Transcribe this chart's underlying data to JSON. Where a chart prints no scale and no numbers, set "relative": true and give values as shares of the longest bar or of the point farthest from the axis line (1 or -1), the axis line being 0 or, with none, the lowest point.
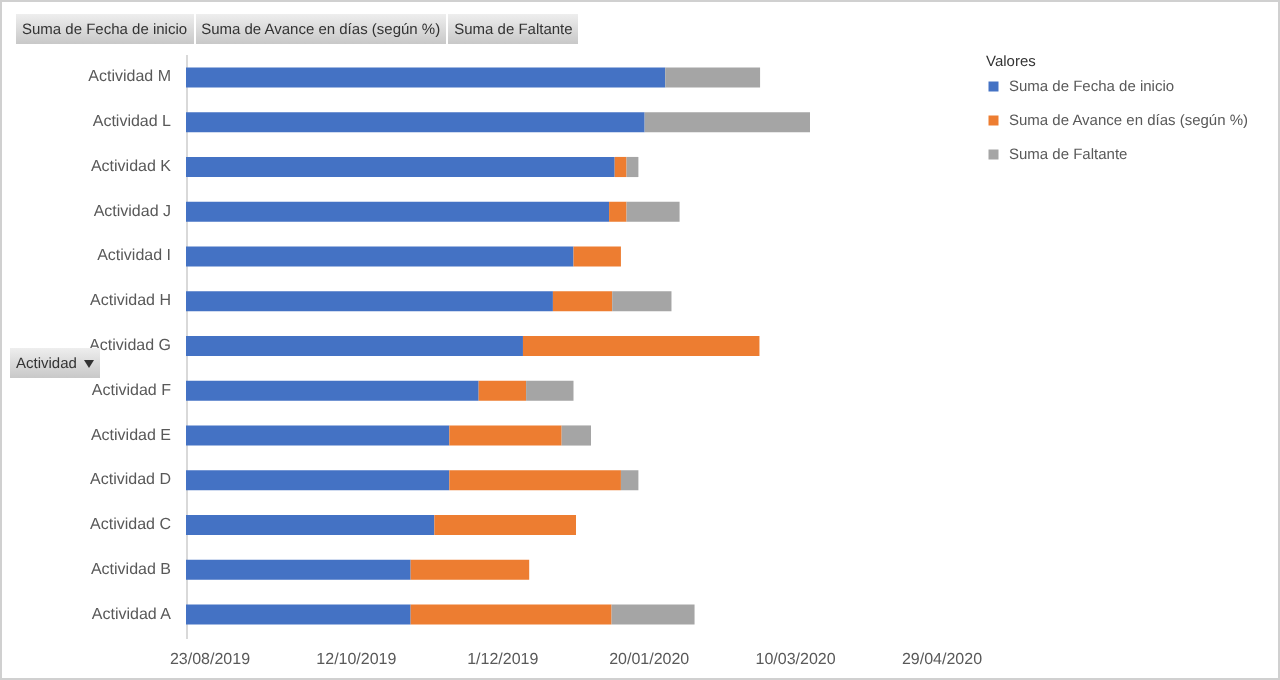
{
  "chart_data": {
    "type": "bar",
    "orientation": "horizontal",
    "stacked": true,
    "relative": true,
    "categories": [
      "Actividad M",
      "Actividad L",
      "Actividad K",
      "Actividad J",
      "Actividad I",
      "Actividad H",
      "Actividad G",
      "Actividad F",
      "Actividad E",
      "Actividad D",
      "Actividad C",
      "Actividad B",
      "Actividad A"
    ],
    "series": [
      {
        "name": "Suma de Fecha de inicio",
        "color": "#4472c4",
        "values": [
          0.768,
          0.735,
          0.687,
          0.678,
          0.621,
          0.588,
          0.54,
          0.469,
          0.422,
          0.422,
          0.398,
          0.36,
          0.36
        ]
      },
      {
        "name": "Suma de Avance en días (según %)",
        "color": "#ed7d31",
        "values": [
          null,
          null,
          0.019,
          0.028,
          0.076,
          0.095,
          0.379,
          0.076,
          0.18,
          0.275,
          0.227,
          0.19,
          0.322
        ]
      },
      {
        "name": "Suma de Faltante",
        "color": "#a5a5a5",
        "values": [
          0.152,
          0.265,
          0.019,
          0.085,
          null,
          0.095,
          null,
          0.076,
          0.047,
          0.028,
          null,
          null,
          0.133
        ]
      }
    ],
    "ylabel": "Actividad",
    "legend_title": "Valores",
    "legend": "right",
    "annotations": [
      "Suma de Fecha de inicio",
      "Suma de Avance en días (según %)",
      "Suma de Faltante",
      "23/08/2019",
      "12/10/2019",
      "1/12/2019",
      "20/01/2020",
      "10/03/2020",
      "29/04/2020"
    ]
  }
}
